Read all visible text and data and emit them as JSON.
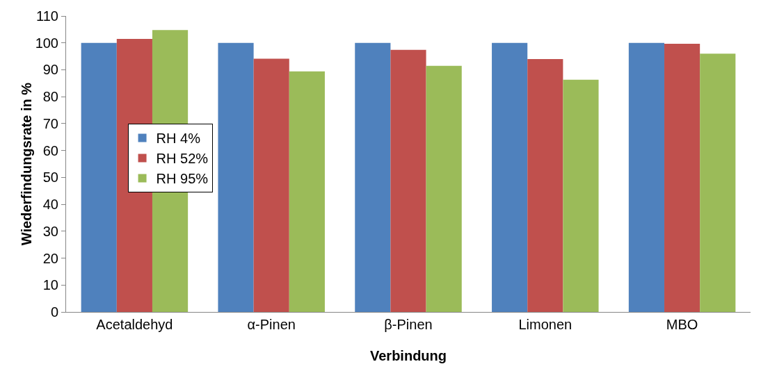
{
  "chart_data": {
    "type": "bar",
    "xlabel": "Verbindung",
    "ylabel": "Wiederfindungsrate in %",
    "categories": [
      "Acetaldehyd",
      "α-Pinen",
      "β-Pinen",
      "Limonen",
      "MBO"
    ],
    "series": [
      {
        "name": "RH 4%",
        "color": "#4f81bd",
        "values": [
          100,
          100,
          100,
          100,
          100
        ]
      },
      {
        "name": "RH 52%",
        "color": "#c0504d",
        "values": [
          101.5,
          94.1,
          97.4,
          94.0,
          99.7
        ]
      },
      {
        "name": "RH 95%",
        "color": "#9bbb59",
        "values": [
          104.8,
          89.4,
          91.5,
          86.3,
          96.0
        ]
      }
    ],
    "ylim": [
      0,
      110
    ],
    "yticks": [
      0,
      10,
      20,
      30,
      40,
      50,
      60,
      70,
      80,
      90,
      100,
      110
    ],
    "grid": false,
    "legend": "left"
  }
}
